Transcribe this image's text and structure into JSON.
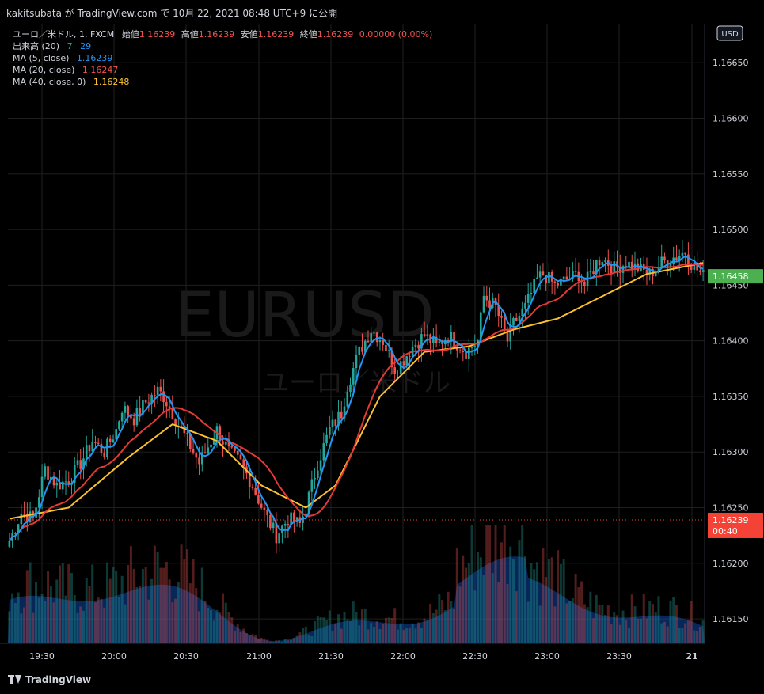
{
  "header": {
    "publish_line": "kakitsubata が TradingView.com で 10月 22, 2021 08:48 UTC+9 に公開"
  },
  "legend": {
    "symbol_line": {
      "label": "ユーロ／米ドル, 1, FXCM",
      "open_label": "始値",
      "open": "1.16239",
      "high_label": "高値",
      "high": "1.16239",
      "low_label": "安値",
      "low": "1.16239",
      "close_label": "終値",
      "close": "1.16239",
      "change": "0.00000 (0.00%)"
    },
    "volume": {
      "label": "出来高 (20)",
      "v1": "7",
      "v2": "29"
    },
    "ma5": {
      "label": "MA (5, close)",
      "value": "1.16239"
    },
    "ma20": {
      "label": "MA (20, close)",
      "value": "1.16247"
    },
    "ma40": {
      "label": "MA (40, close, 0)",
      "value": "1.16248"
    }
  },
  "watermark": {
    "symbol": "EURUSD",
    "name": "ユーロ／米ドル"
  },
  "colors": {
    "up": "#26a69a",
    "down": "#ef5350",
    "ma5": "#2196f3",
    "ma20": "#e53935",
    "ma40": "#fbc02d",
    "volume_area": "#0d47a1",
    "last_price": "#4caf50",
    "current_price": "#f44336"
  },
  "price_axis": {
    "currency": "USD",
    "last_price_label": "1.16458",
    "current_price_label": "1.16239",
    "countdown": "00:40"
  },
  "time_axis": {
    "labels": [
      "19:30",
      "20:00",
      "20:30",
      "21:00",
      "21:30",
      "22:00",
      "22:30",
      "23:00",
      "23:30",
      "21"
    ]
  },
  "footer": {
    "brand": "TradingView"
  },
  "chart_data": {
    "type": "candlestick",
    "symbol": "EURUSD",
    "timeframe": "1",
    "y_ticks": [
      1.1665,
      1.166,
      1.1655,
      1.165,
      1.1645,
      1.164,
      1.1635,
      1.163,
      1.1625,
      1.162,
      1.1615
    ],
    "ylim": [
      1.16128,
      1.16685
    ],
    "x_labels": [
      "19:30",
      "20:00",
      "20:30",
      "21:00",
      "21:30",
      "22:00",
      "22:30",
      "23:00",
      "23:30",
      "21"
    ],
    "grid": true,
    "close_path": [
      [
        0,
        1.1622
      ],
      [
        4,
        1.16245
      ],
      [
        8,
        1.1624
      ],
      [
        12,
        1.16285
      ],
      [
        16,
        1.1627
      ],
      [
        20,
        1.16275
      ],
      [
        24,
        1.1629
      ],
      [
        28,
        1.1631
      ],
      [
        32,
        1.163
      ],
      [
        36,
        1.1632
      ],
      [
        38,
        1.1634
      ],
      [
        42,
        1.1633
      ],
      [
        46,
        1.16345
      ],
      [
        50,
        1.16355
      ],
      [
        52,
        1.1635
      ],
      [
        56,
        1.1633
      ],
      [
        60,
        1.1631
      ],
      [
        64,
        1.1629
      ],
      [
        66,
        1.163
      ],
      [
        70,
        1.1632
      ],
      [
        74,
        1.163
      ],
      [
        78,
        1.1629
      ],
      [
        82,
        1.1627
      ],
      [
        86,
        1.16245
      ],
      [
        90,
        1.16225
      ],
      [
        94,
        1.1624
      ],
      [
        98,
        1.16235
      ],
      [
        100,
        1.1625
      ],
      [
        104,
        1.1629
      ],
      [
        108,
        1.1632
      ],
      [
        112,
        1.16335
      ],
      [
        114,
        1.1636
      ],
      [
        118,
        1.1639
      ],
      [
        122,
        1.1641
      ],
      [
        126,
        1.164
      ],
      [
        130,
        1.16375
      ],
      [
        132,
        1.1638
      ],
      [
        136,
        1.16395
      ],
      [
        140,
        1.16405
      ],
      [
        144,
        1.16395
      ],
      [
        148,
        1.16405
      ],
      [
        150,
        1.164
      ],
      [
        154,
        1.1639
      ],
      [
        158,
        1.164
      ],
      [
        160,
        1.1644
      ],
      [
        164,
        1.1643
      ],
      [
        168,
        1.164
      ],
      [
        170,
        1.16415
      ],
      [
        174,
        1.1643
      ],
      [
        178,
        1.16455
      ],
      [
        180,
        1.1646
      ],
      [
        184,
        1.1645
      ],
      [
        188,
        1.16455
      ],
      [
        192,
        1.1646
      ],
      [
        194,
        1.1645
      ],
      [
        198,
        1.1647
      ],
      [
        200,
        1.16475
      ],
      [
        204,
        1.16465
      ],
      [
        208,
        1.1647
      ],
      [
        212,
        1.16465
      ],
      [
        216,
        1.1646
      ],
      [
        220,
        1.1647
      ],
      [
        224,
        1.16475
      ],
      [
        228,
        1.1648
      ],
      [
        230,
        1.1647
      ],
      [
        234,
        1.16458
      ]
    ],
    "ma40_path": [
      [
        0,
        1.1624
      ],
      [
        20,
        1.1625
      ],
      [
        40,
        1.16295
      ],
      [
        55,
        1.16325
      ],
      [
        70,
        1.1631
      ],
      [
        85,
        1.1627
      ],
      [
        100,
        1.1625
      ],
      [
        110,
        1.1627
      ],
      [
        125,
        1.1635
      ],
      [
        140,
        1.1639
      ],
      [
        155,
        1.16395
      ],
      [
        170,
        1.1641
      ],
      [
        185,
        1.1642
      ],
      [
        200,
        1.1644
      ],
      [
        215,
        1.1646
      ],
      [
        234,
        1.1647
      ]
    ],
    "volume": {
      "shown_as": "histogram with moving-average area",
      "last_values": [
        7,
        29
      ]
    }
  }
}
